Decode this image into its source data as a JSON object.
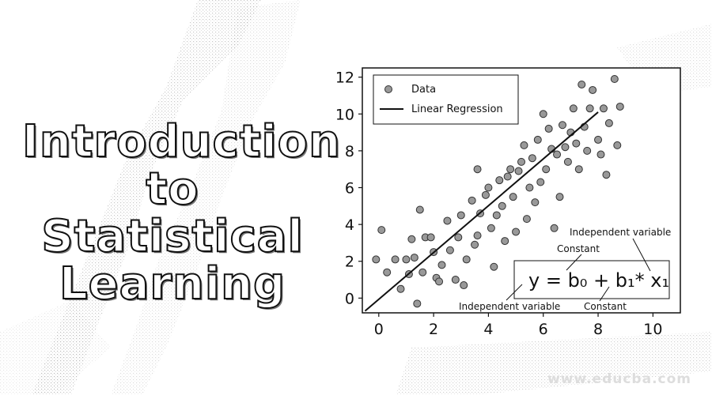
{
  "title_lines": [
    "Introduction",
    "to Statistical",
    "Learning"
  ],
  "watermark": "www.educba.com",
  "chart_data": {
    "type": "scatter",
    "title": "",
    "xlabel": "",
    "ylabel": "",
    "xlim": [
      -0.6,
      11
    ],
    "ylim": [
      -0.8,
      12.5
    ],
    "xticks": [
      0,
      2,
      4,
      6,
      8,
      10
    ],
    "yticks": [
      0,
      2,
      4,
      6,
      8,
      10,
      12
    ],
    "grid": false,
    "legend_position": "top-left",
    "series": [
      {
        "name": "Data",
        "type": "scatter",
        "color": "#999999",
        "points": [
          [
            -0.1,
            2.1
          ],
          [
            0.1,
            3.7
          ],
          [
            0.3,
            1.4
          ],
          [
            0.6,
            2.1
          ],
          [
            0.8,
            0.5
          ],
          [
            1.0,
            2.1
          ],
          [
            1.1,
            1.3
          ],
          [
            1.2,
            3.2
          ],
          [
            1.3,
            2.2
          ],
          [
            1.4,
            -0.3
          ],
          [
            1.5,
            4.8
          ],
          [
            1.6,
            1.4
          ],
          [
            1.7,
            3.3
          ],
          [
            1.9,
            3.3
          ],
          [
            2.0,
            2.5
          ],
          [
            2.1,
            1.1
          ],
          [
            2.2,
            0.9
          ],
          [
            2.3,
            1.8
          ],
          [
            2.5,
            4.2
          ],
          [
            2.6,
            2.6
          ],
          [
            2.8,
            1.0
          ],
          [
            2.9,
            3.3
          ],
          [
            3.0,
            4.5
          ],
          [
            3.1,
            0.7
          ],
          [
            3.2,
            2.1
          ],
          [
            3.4,
            5.3
          ],
          [
            3.5,
            2.9
          ],
          [
            3.6,
            3.4
          ],
          [
            3.6,
            7.0
          ],
          [
            3.7,
            4.6
          ],
          [
            3.9,
            5.6
          ],
          [
            4.0,
            6.0
          ],
          [
            4.1,
            3.8
          ],
          [
            4.2,
            1.7
          ],
          [
            4.3,
            4.5
          ],
          [
            4.4,
            6.4
          ],
          [
            4.5,
            5.0
          ],
          [
            4.6,
            3.1
          ],
          [
            4.7,
            6.6
          ],
          [
            4.8,
            7.0
          ],
          [
            4.9,
            5.5
          ],
          [
            5.0,
            3.6
          ],
          [
            5.1,
            6.9
          ],
          [
            5.2,
            7.4
          ],
          [
            5.3,
            8.3
          ],
          [
            5.4,
            4.3
          ],
          [
            5.5,
            6.0
          ],
          [
            5.6,
            7.6
          ],
          [
            5.7,
            5.2
          ],
          [
            5.8,
            8.6
          ],
          [
            5.9,
            6.3
          ],
          [
            6.0,
            10.0
          ],
          [
            6.1,
            7.0
          ],
          [
            6.2,
            9.2
          ],
          [
            6.3,
            8.1
          ],
          [
            6.4,
            3.8
          ],
          [
            6.5,
            7.8
          ],
          [
            6.6,
            5.5
          ],
          [
            6.7,
            9.4
          ],
          [
            6.8,
            8.2
          ],
          [
            6.9,
            7.4
          ],
          [
            7.0,
            9.0
          ],
          [
            7.1,
            10.3
          ],
          [
            7.2,
            8.4
          ],
          [
            7.3,
            7.0
          ],
          [
            7.4,
            11.6
          ],
          [
            7.5,
            9.3
          ],
          [
            7.6,
            8.0
          ],
          [
            7.7,
            10.3
          ],
          [
            7.8,
            11.3
          ],
          [
            8.0,
            8.6
          ],
          [
            8.1,
            7.8
          ],
          [
            8.2,
            10.3
          ],
          [
            8.3,
            6.7
          ],
          [
            8.4,
            9.5
          ],
          [
            8.6,
            11.9
          ],
          [
            8.7,
            8.3
          ],
          [
            8.8,
            10.4
          ]
        ]
      },
      {
        "name": "Linear Regression",
        "type": "line",
        "color": "#111111",
        "points": [
          [
            -0.5,
            -0.7
          ],
          [
            8.0,
            10.1
          ]
        ]
      }
    ],
    "annotations": {
      "equation": "y = b₀ + b₁* x₁",
      "top_right_label": "Independent variable",
      "top_left_label": "Constant",
      "bottom_left_label": "Independent variable",
      "bottom_right_label": "Constant"
    }
  }
}
